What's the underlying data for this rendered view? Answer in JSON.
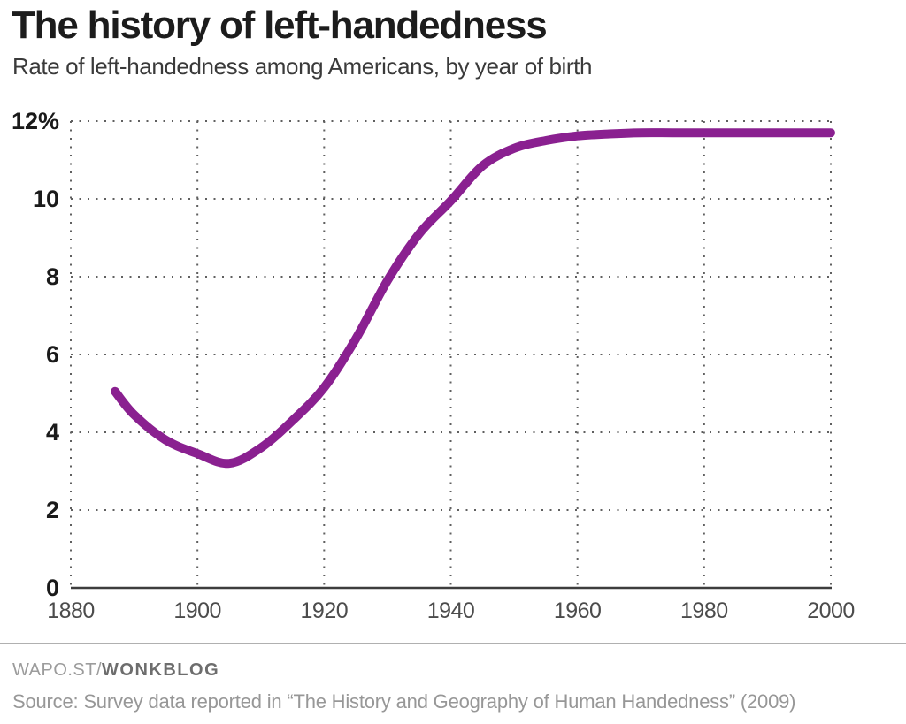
{
  "header": {
    "title": "The history of left-handedness",
    "subtitle": "Rate of left-handedness among Americans, by year of birth"
  },
  "chart_data": {
    "type": "line",
    "title": "The history of left-handedness",
    "subtitle": "Rate of left-handedness among Americans, by year of birth",
    "xlabel": "",
    "ylabel": "",
    "xlim": [
      1880,
      2000
    ],
    "ylim": [
      0,
      12
    ],
    "grid": "dotted",
    "legend": "none",
    "x_ticks": [
      {
        "value": 1880,
        "label": "1880"
      },
      {
        "value": 1900,
        "label": "1900"
      },
      {
        "value": 1920,
        "label": "1920"
      },
      {
        "value": 1940,
        "label": "1940"
      },
      {
        "value": 1960,
        "label": "1960"
      },
      {
        "value": 1980,
        "label": "1980"
      },
      {
        "value": 2000,
        "label": "2000"
      }
    ],
    "y_ticks": [
      {
        "value": 12,
        "label": "12%"
      },
      {
        "value": 10,
        "label": "10"
      },
      {
        "value": 8,
        "label": "8"
      },
      {
        "value": 6,
        "label": "6"
      },
      {
        "value": 4,
        "label": "4"
      },
      {
        "value": 2,
        "label": "2"
      },
      {
        "value": 0,
        "label": "0"
      }
    ],
    "line_color": "#8a2090",
    "line_width": 10,
    "grid_color": "#606060",
    "axis_color": "#3d3d3d",
    "y_label_color": "#1a1a1a",
    "x_label_color": "#4c4c4c",
    "series": [
      {
        "name": "Rate of left-handedness",
        "points": [
          [
            1887,
            5.05
          ],
          [
            1890,
            4.45
          ],
          [
            1895,
            3.8
          ],
          [
            1900,
            3.45
          ],
          [
            1905,
            3.2
          ],
          [
            1910,
            3.6
          ],
          [
            1915,
            4.3
          ],
          [
            1920,
            5.15
          ],
          [
            1925,
            6.4
          ],
          [
            1930,
            7.9
          ],
          [
            1935,
            9.1
          ],
          [
            1940,
            9.95
          ],
          [
            1945,
            10.85
          ],
          [
            1950,
            11.3
          ],
          [
            1955,
            11.5
          ],
          [
            1960,
            11.62
          ],
          [
            1965,
            11.67
          ],
          [
            1970,
            11.7
          ],
          [
            1975,
            11.7
          ],
          [
            1980,
            11.7
          ],
          [
            1985,
            11.7
          ],
          [
            1990,
            11.7
          ],
          [
            1995,
            11.7
          ],
          [
            2000,
            11.7
          ]
        ]
      }
    ]
  },
  "footer": {
    "brand_prefix": "WAPO.ST/",
    "brand_name": "WONKBLOG",
    "source": "Source: Survey data reported in “The History and Geography of Human Handedness” (2009)"
  }
}
